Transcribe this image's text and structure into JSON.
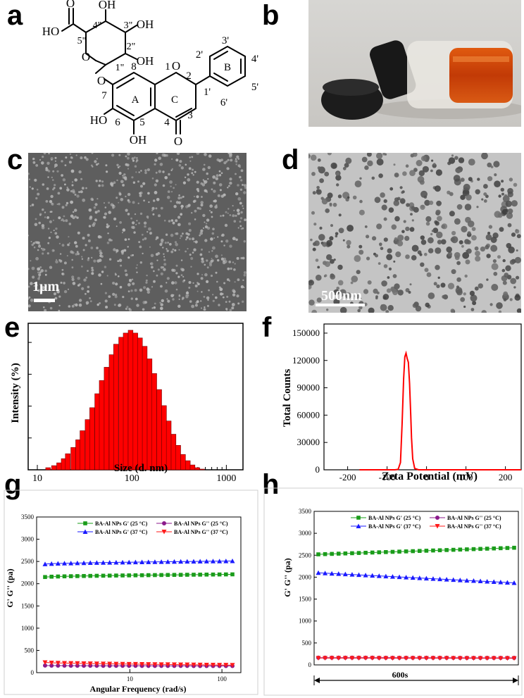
{
  "panels": {
    "a": "a",
    "b": "b",
    "c": "c",
    "d": "d",
    "e": "e",
    "f": "f",
    "g": "g",
    "h": "h"
  },
  "molecule": {
    "labels": {
      "o_ring": "O",
      "n1": "1",
      "n2": "2",
      "n3": "3",
      "n4": "4",
      "n5": "5",
      "n6": "6",
      "n7": "7",
      "n8": "8",
      "ringA": "A",
      "ringB": "B",
      "ringC": "C",
      "p1": "1'",
      "p2": "2'",
      "p3": "3'",
      "p4": "4'",
      "p5": "5'",
      "p6": "6'",
      "s1": "1\"",
      "s2": "2\"",
      "s3": "3\"",
      "s4": "4\"",
      "s5": "5\"",
      "ho_acid": "HO",
      "o_acid": "O",
      "oh_4": "OH",
      "oh_3": "OH",
      "oh_2": "OH",
      "o_sugar": "O",
      "o_link": "O",
      "ho_6": "HO",
      "oh_5": "OH",
      "o_ketone": "O"
    }
  },
  "scalebars": {
    "c": "1µm",
    "d": "500nm"
  },
  "chart_data": [
    {
      "id": "e",
      "type": "bar",
      "title": "",
      "xlabel": "Size (d. nm)",
      "ylabel": "Intensity (%)",
      "xscale": "log",
      "xlim": [
        8,
        1500
      ],
      "xticks": [
        "10",
        "100",
        "1000"
      ],
      "color": "#ff0000",
      "x": [
        13,
        15,
        17,
        19,
        21,
        24,
        27,
        30,
        34,
        38,
        43,
        48,
        54,
        61,
        68,
        77,
        86,
        97,
        109,
        122,
        137,
        154,
        173,
        195,
        219,
        246,
        276,
        310,
        348,
        391,
        439,
        493,
        554
      ],
      "values": [
        0.3,
        0.6,
        1.0,
        1.6,
        2.3,
        3.2,
        4.3,
        5.6,
        7.2,
        8.9,
        10.9,
        12.8,
        14.7,
        16.5,
        18.0,
        19.0,
        19.6,
        20.0,
        19.6,
        18.9,
        17.7,
        15.9,
        13.8,
        11.5,
        9.2,
        7.0,
        5.1,
        3.5,
        2.2,
        1.3,
        0.7,
        0.3,
        0.1
      ],
      "ylim": [
        0,
        21
      ]
    },
    {
      "id": "f",
      "type": "line",
      "title": "",
      "xlabel": "Zeta Potential (mV)",
      "ylabel": "Total Counts",
      "xlim": [
        -260,
        240
      ],
      "ylim": [
        0,
        160000
      ],
      "xticks": [
        "-200",
        "-100",
        "0",
        "100",
        "200"
      ],
      "yticks": [
        "0",
        "30000",
        "60000",
        "90000",
        "120000",
        "150000"
      ],
      "color": "#ff0000",
      "series": [
        {
          "x": [
            -170,
            -100,
            -80,
            -72,
            -66,
            -62,
            -58,
            -55,
            -52,
            -49,
            -46,
            -43,
            -40,
            -38,
            -35,
            -30,
            -20,
            0,
            100,
            240
          ],
          "y": [
            0,
            0,
            0,
            500,
            8000,
            50000,
            100000,
            124000,
            128000,
            122000,
            118000,
            95000,
            60000,
            35000,
            12000,
            1500,
            0,
            0,
            0,
            0
          ]
        }
      ]
    },
    {
      "id": "g",
      "type": "line",
      "title": "",
      "xlabel": "Angular Frequency (rad/s)",
      "ylabel": "G' G'' (pa)",
      "xscale": "log",
      "xlim": [
        1,
        150
      ],
      "ylim": [
        0,
        3500
      ],
      "xticks": [
        "10",
        "100"
      ],
      "yticks": [
        "0",
        "500",
        "1000",
        "1500",
        "2000",
        "2500",
        "3000",
        "3500"
      ],
      "legend_position": "top-right",
      "series": [
        {
          "name": "BA-Al NPs G' (25 °C)",
          "color": "#1a9c1a",
          "marker": "square",
          "start": 2150,
          "end": 2210
        },
        {
          "name": "BA-Al NPs G'' (25 °C)",
          "color": "#8b1a8b",
          "marker": "circle",
          "start": 160,
          "end": 150
        },
        {
          "name": "BA-Al NPs G' (37 °C)",
          "color": "#1a1aff",
          "marker": "triangle-up",
          "start": 2440,
          "end": 2510
        },
        {
          "name": "BA-Al NPs G'' (37 °C)",
          "color": "#ff1a1a",
          "marker": "triangle-down",
          "start": 230,
          "end": 170
        }
      ]
    },
    {
      "id": "h",
      "type": "line",
      "title": "",
      "xlabel": "600s",
      "ylabel": "G' G'' (pa)",
      "ylim": [
        0,
        3500
      ],
      "yticks": [
        "0",
        "500",
        "1000",
        "1500",
        "2000",
        "2500",
        "3000",
        "3500"
      ],
      "legend_position": "top-right",
      "series": [
        {
          "name": "BA-Al NPs G' (25 °C)",
          "color": "#1a9c1a",
          "marker": "square",
          "start": 2520,
          "end": 2670
        },
        {
          "name": "BA-Al NPs G'' (25 °C)",
          "color": "#8b1a8b",
          "marker": "circle",
          "start": 165,
          "end": 160
        },
        {
          "name": "BA-Al NPs G' (37 °C)",
          "color": "#1a1aff",
          "marker": "triangle-up",
          "start": 2100,
          "end": 1870
        },
        {
          "name": "BA-Al NPs G'' (37 °C)",
          "color": "#ff1a1a",
          "marker": "triangle-down",
          "start": 155,
          "end": 150
        }
      ]
    }
  ]
}
